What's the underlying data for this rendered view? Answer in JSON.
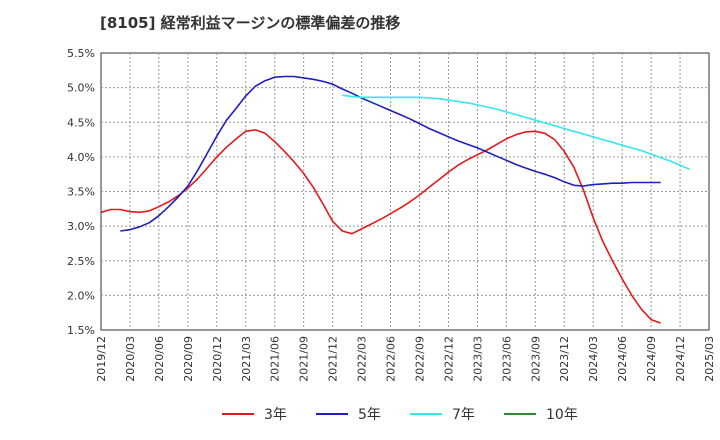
{
  "chart_data": {
    "type": "line",
    "title": "[8105]  経常利益マージンの標準偏差の推移",
    "xlabel": "",
    "ylabel": "",
    "ylim": [
      1.5,
      5.5
    ],
    "y_ticks": [
      "5.5%",
      "5.0%",
      "4.5%",
      "4.0%",
      "3.5%",
      "3.0%",
      "2.5%",
      "2.0%",
      "1.5%"
    ],
    "x_ticks": [
      "2019/12",
      "2020/03",
      "2020/06",
      "2020/09",
      "2020/12",
      "2021/03",
      "2021/06",
      "2021/09",
      "2021/12",
      "2022/03",
      "2022/06",
      "2022/09",
      "2022/12",
      "2023/03",
      "2023/06",
      "2023/09",
      "2023/12",
      "2024/03",
      "2024/06",
      "2024/09",
      "2024/12",
      "2025/03"
    ],
    "grid": true,
    "legend_position": "bottom",
    "series": [
      {
        "name": "3年",
        "color": "#e31a1c",
        "points": [
          [
            "2019/12",
            3.2
          ],
          [
            "2020/01",
            3.24
          ],
          [
            "2020/02",
            3.24
          ],
          [
            "2020/03",
            3.21
          ],
          [
            "2020/04",
            3.2
          ],
          [
            "2020/05",
            3.22
          ],
          [
            "2020/06",
            3.28
          ],
          [
            "2020/07",
            3.35
          ],
          [
            "2020/08",
            3.44
          ],
          [
            "2020/09",
            3.55
          ],
          [
            "2020/10",
            3.68
          ],
          [
            "2020/11",
            3.84
          ],
          [
            "2020/12",
            4.0
          ],
          [
            "2021/01",
            4.14
          ],
          [
            "2021/02",
            4.26
          ],
          [
            "2021/03",
            4.37
          ],
          [
            "2021/04",
            4.39
          ],
          [
            "2021/05",
            4.34
          ],
          [
            "2021/06",
            4.22
          ],
          [
            "2021/07",
            4.08
          ],
          [
            "2021/08",
            3.93
          ],
          [
            "2021/09",
            3.76
          ],
          [
            "2021/10",
            3.56
          ],
          [
            "2021/11",
            3.32
          ],
          [
            "2021/12",
            3.07
          ],
          [
            "2022/01",
            2.93
          ],
          [
            "2022/02",
            2.89
          ],
          [
            "2022/03",
            2.96
          ],
          [
            "2022/04",
            3.03
          ],
          [
            "2022/05",
            3.1
          ],
          [
            "2022/06",
            3.18
          ],
          [
            "2022/07",
            3.26
          ],
          [
            "2022/08",
            3.35
          ],
          [
            "2022/09",
            3.45
          ],
          [
            "2022/10",
            3.56
          ],
          [
            "2022/11",
            3.67
          ],
          [
            "2022/12",
            3.78
          ],
          [
            "2023/01",
            3.88
          ],
          [
            "2023/02",
            3.96
          ],
          [
            "2023/03",
            4.03
          ],
          [
            "2023/04",
            4.1
          ],
          [
            "2023/05",
            4.18
          ],
          [
            "2023/06",
            4.26
          ],
          [
            "2023/07",
            4.32
          ],
          [
            "2023/08",
            4.36
          ],
          [
            "2023/09",
            4.37
          ],
          [
            "2023/10",
            4.34
          ],
          [
            "2023/11",
            4.25
          ],
          [
            "2023/12",
            4.08
          ],
          [
            "2024/01",
            3.85
          ],
          [
            "2024/02",
            3.52
          ],
          [
            "2024/03",
            3.12
          ],
          [
            "2024/04",
            2.78
          ],
          [
            "2024/05",
            2.5
          ],
          [
            "2024/06",
            2.24
          ],
          [
            "2024/07",
            2.0
          ],
          [
            "2024/08",
            1.8
          ],
          [
            "2024/09",
            1.65
          ],
          [
            "2024/10",
            1.6
          ]
        ]
      },
      {
        "name": "5年",
        "color": "#1f1fbf",
        "points": [
          [
            "2020/02",
            2.93
          ],
          [
            "2020/03",
            2.95
          ],
          [
            "2020/04",
            2.99
          ],
          [
            "2020/05",
            3.05
          ],
          [
            "2020/06",
            3.15
          ],
          [
            "2020/07",
            3.28
          ],
          [
            "2020/08",
            3.42
          ],
          [
            "2020/09",
            3.58
          ],
          [
            "2020/10",
            3.8
          ],
          [
            "2020/11",
            4.05
          ],
          [
            "2020/12",
            4.3
          ],
          [
            "2021/01",
            4.53
          ],
          [
            "2021/02",
            4.7
          ],
          [
            "2021/03",
            4.88
          ],
          [
            "2021/04",
            5.02
          ],
          [
            "2021/05",
            5.1
          ],
          [
            "2021/06",
            5.15
          ],
          [
            "2021/07",
            5.16
          ],
          [
            "2021/08",
            5.16
          ],
          [
            "2021/09",
            5.14
          ],
          [
            "2021/10",
            5.12
          ],
          [
            "2021/11",
            5.09
          ],
          [
            "2021/12",
            5.05
          ],
          [
            "2022/01",
            4.98
          ],
          [
            "2022/02",
            4.92
          ],
          [
            "2022/03",
            4.85
          ],
          [
            "2022/04",
            4.79
          ],
          [
            "2022/05",
            4.73
          ],
          [
            "2022/06",
            4.67
          ],
          [
            "2022/07",
            4.61
          ],
          [
            "2022/08",
            4.55
          ],
          [
            "2022/09",
            4.48
          ],
          [
            "2022/10",
            4.41
          ],
          [
            "2022/11",
            4.35
          ],
          [
            "2022/12",
            4.29
          ],
          [
            "2023/01",
            4.23
          ],
          [
            "2023/02",
            4.18
          ],
          [
            "2023/03",
            4.13
          ],
          [
            "2023/04",
            4.07
          ],
          [
            "2023/05",
            4.01
          ],
          [
            "2023/06",
            3.95
          ],
          [
            "2023/07",
            3.89
          ],
          [
            "2023/08",
            3.84
          ],
          [
            "2023/09",
            3.79
          ],
          [
            "2023/10",
            3.75
          ],
          [
            "2023/11",
            3.7
          ],
          [
            "2023/12",
            3.64
          ],
          [
            "2024/01",
            3.59
          ],
          [
            "2024/02",
            3.58
          ],
          [
            "2024/03",
            3.6
          ],
          [
            "2024/04",
            3.61
          ],
          [
            "2024/05",
            3.62
          ],
          [
            "2024/06",
            3.62
          ],
          [
            "2024/07",
            3.63
          ],
          [
            "2024/08",
            3.63
          ],
          [
            "2024/09",
            3.63
          ],
          [
            "2024/10",
            3.63
          ]
        ]
      },
      {
        "name": "7年",
        "color": "#33e6f0",
        "points": [
          [
            "2022/01",
            4.89
          ],
          [
            "2022/02",
            4.87
          ],
          [
            "2022/03",
            4.86
          ],
          [
            "2022/04",
            4.86
          ],
          [
            "2022/05",
            4.86
          ],
          [
            "2022/06",
            4.86
          ],
          [
            "2022/07",
            4.86
          ],
          [
            "2022/08",
            4.86
          ],
          [
            "2022/09",
            4.86
          ],
          [
            "2022/10",
            4.85
          ],
          [
            "2022/11",
            4.84
          ],
          [
            "2022/12",
            4.82
          ],
          [
            "2023/01",
            4.8
          ],
          [
            "2023/02",
            4.78
          ],
          [
            "2023/03",
            4.75
          ],
          [
            "2023/04",
            4.72
          ],
          [
            "2023/05",
            4.69
          ],
          [
            "2023/06",
            4.65
          ],
          [
            "2023/07",
            4.61
          ],
          [
            "2023/08",
            4.57
          ],
          [
            "2023/09",
            4.53
          ],
          [
            "2023/10",
            4.49
          ],
          [
            "2023/11",
            4.45
          ],
          [
            "2023/12",
            4.41
          ],
          [
            "2024/01",
            4.37
          ],
          [
            "2024/02",
            4.33
          ],
          [
            "2024/03",
            4.29
          ],
          [
            "2024/04",
            4.25
          ],
          [
            "2024/05",
            4.21
          ],
          [
            "2024/06",
            4.17
          ],
          [
            "2024/07",
            4.13
          ],
          [
            "2024/08",
            4.09
          ],
          [
            "2024/09",
            4.04
          ],
          [
            "2024/10",
            3.99
          ],
          [
            "2024/11",
            3.94
          ],
          [
            "2024/12",
            3.88
          ],
          [
            "2025/01",
            3.82
          ]
        ]
      },
      {
        "name": "10年",
        "color": "#2e8b2e",
        "points": []
      }
    ]
  }
}
